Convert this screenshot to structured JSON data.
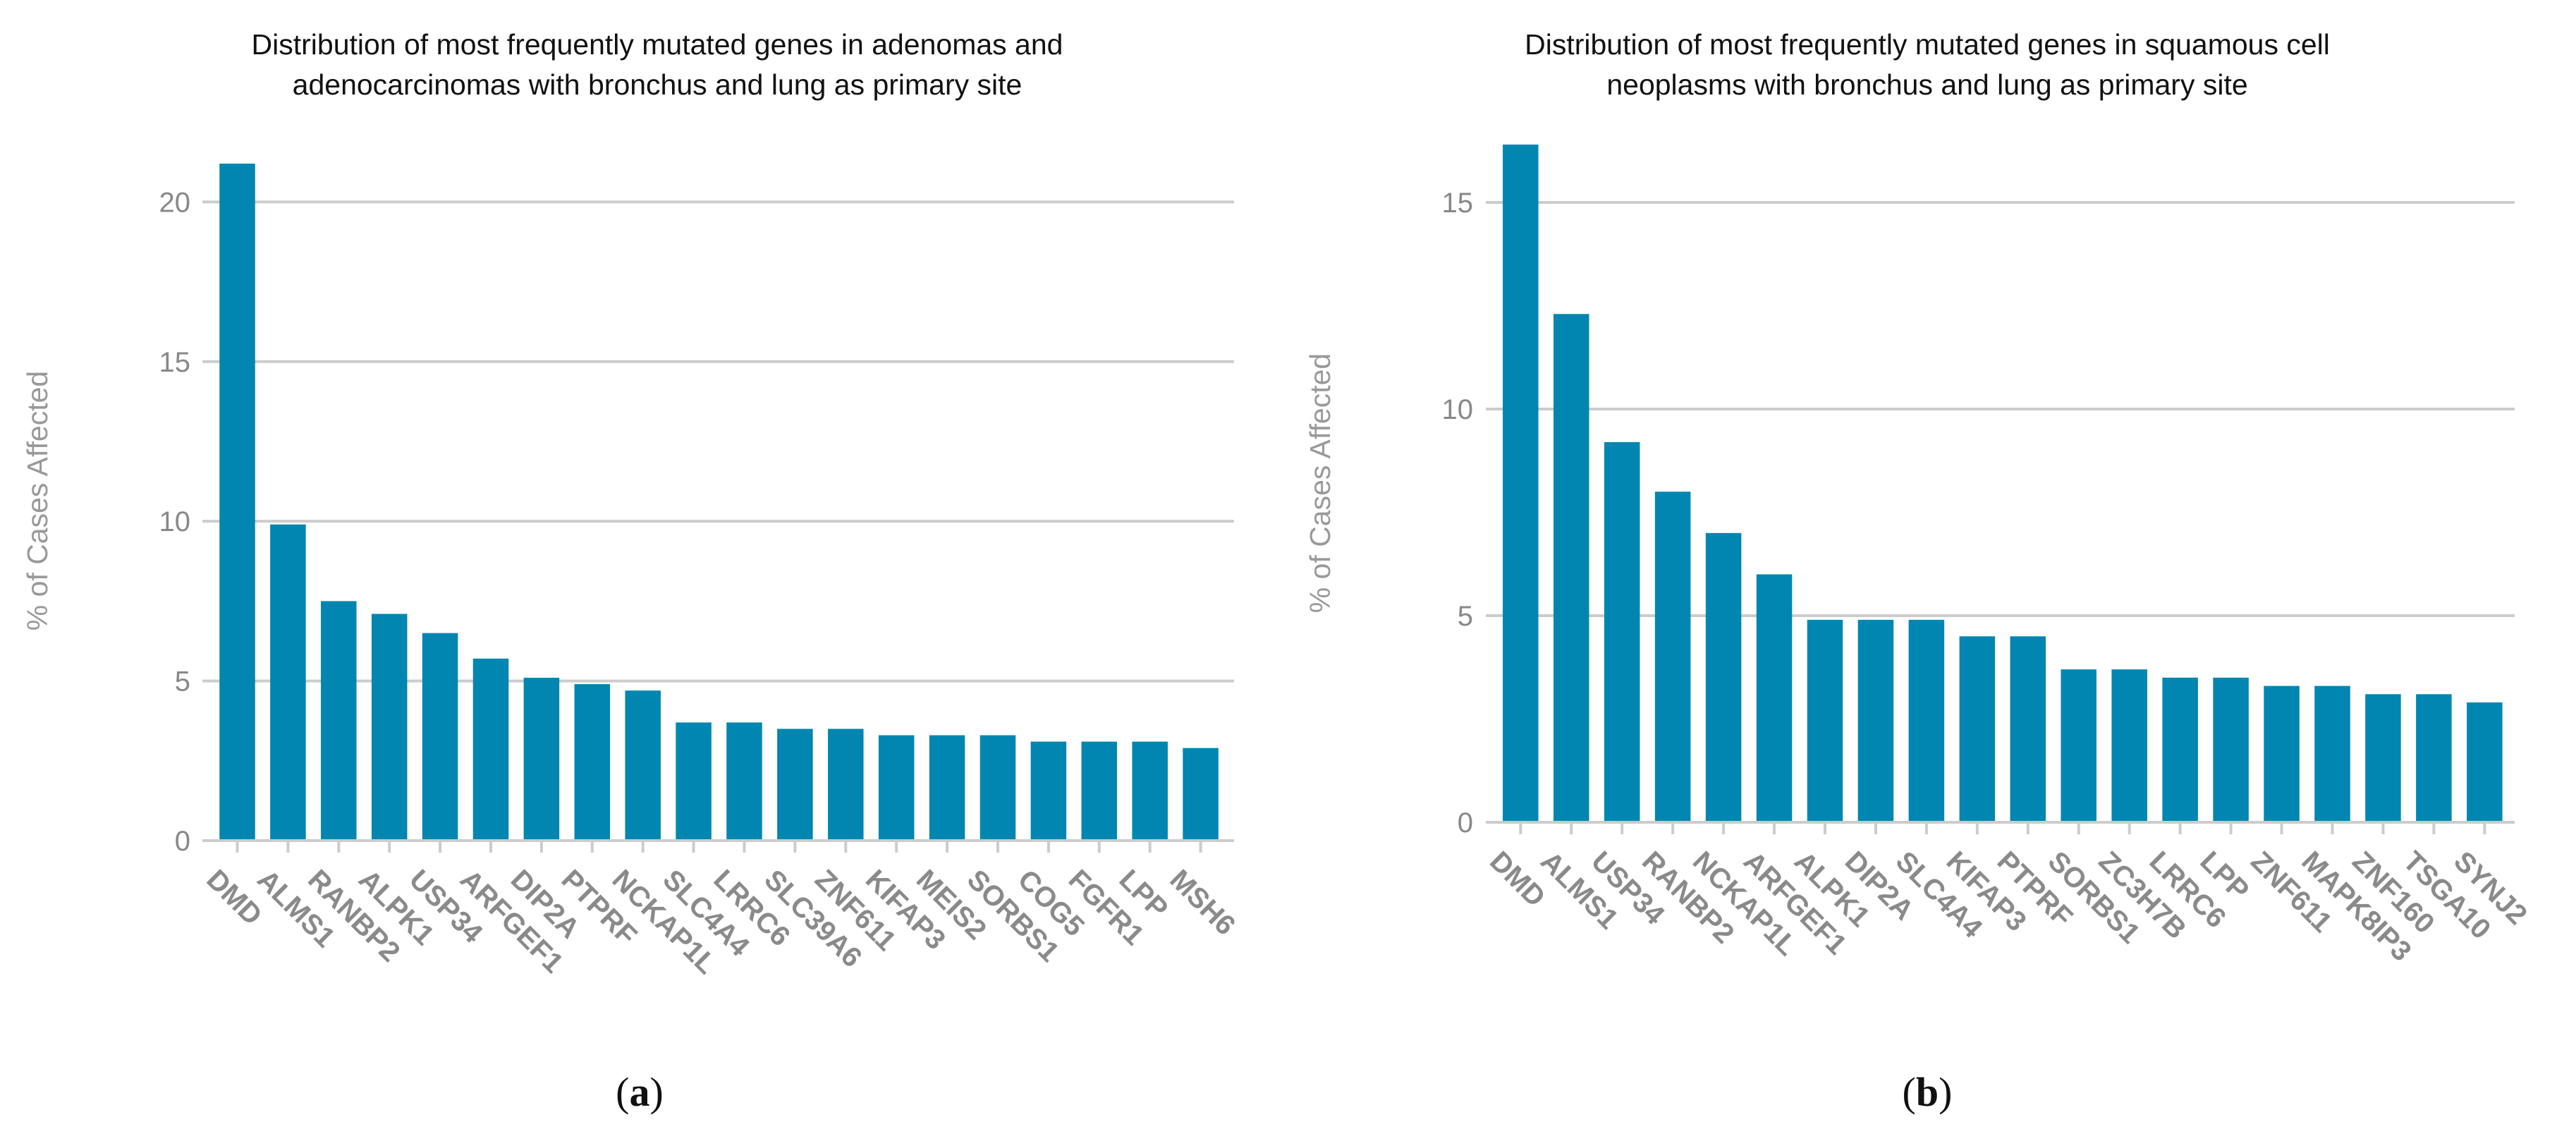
{
  "chart_data": [
    {
      "type": "bar",
      "title_lines": [
        "Distribution of most frequently mutated genes in adenomas and",
        "adenocarcinomas with bronchus and lung as primary site"
      ],
      "xlabel": "",
      "ylabel": "% of Cases Affected",
      "categories": [
        "DMD",
        "ALMS1",
        "RANBP2",
        "ALPK1",
        "USP34",
        "ARFGEF1",
        "DIP2A",
        "PTPRF",
        "NCKAP1L",
        "SLC4A4",
        "LRRC6",
        "SLC39A6",
        "ZNF611",
        "KIFAP3",
        "MEIS2",
        "SORBS1",
        "COG5",
        "FGFR1",
        "LPP",
        "MSH6"
      ],
      "values": [
        21.2,
        9.9,
        7.5,
        7.1,
        6.5,
        5.7,
        5.1,
        4.9,
        4.7,
        3.7,
        3.7,
        3.5,
        3.5,
        3.3,
        3.3,
        3.3,
        3.1,
        3.1,
        3.1,
        2.9
      ],
      "ylim": [
        0,
        21.2
      ],
      "yticks": [
        0,
        5,
        10,
        15,
        20
      ],
      "ytick_labels": [
        "0",
        "5",
        "10",
        "15",
        "20"
      ],
      "grid": true,
      "bar_color": "#0086b0",
      "caption": {
        "open": "(",
        "letter": "a",
        "close": ")"
      }
    },
    {
      "type": "bar",
      "title_lines": [
        "Distribution of most frequently mutated genes in squamous cell",
        "neoplasms with bronchus and lung as primary site"
      ],
      "xlabel": "",
      "ylabel": "% of Cases Affected",
      "categories": [
        "DMD",
        "ALMS1",
        "USP34",
        "RANBP2",
        "NCKAP1L",
        "ARFGEF1",
        "ALPK1",
        "DIP2A",
        "SLC4A4",
        "KIFAP3",
        "PTPRF",
        "SORBS1",
        "ZC3H7B",
        "LRRC6",
        "LPP",
        "ZNF611",
        "MAPK8IP3",
        "ZNF160",
        "TSGA10",
        "SYNJ2"
      ],
      "values": [
        16.4,
        12.3,
        9.2,
        8.0,
        7.0,
        6.0,
        4.9,
        4.9,
        4.9,
        4.5,
        4.5,
        3.7,
        3.7,
        3.5,
        3.5,
        3.3,
        3.3,
        3.1,
        3.1,
        2.9
      ],
      "ylim": [
        0,
        16.4
      ],
      "yticks": [
        0,
        5,
        10,
        15
      ],
      "ytick_labels": [
        "0",
        "5",
        "10",
        "15"
      ],
      "grid": true,
      "bar_color": "#0086b0",
      "caption": {
        "open": "(",
        "letter": "b",
        "close": ")"
      }
    }
  ]
}
